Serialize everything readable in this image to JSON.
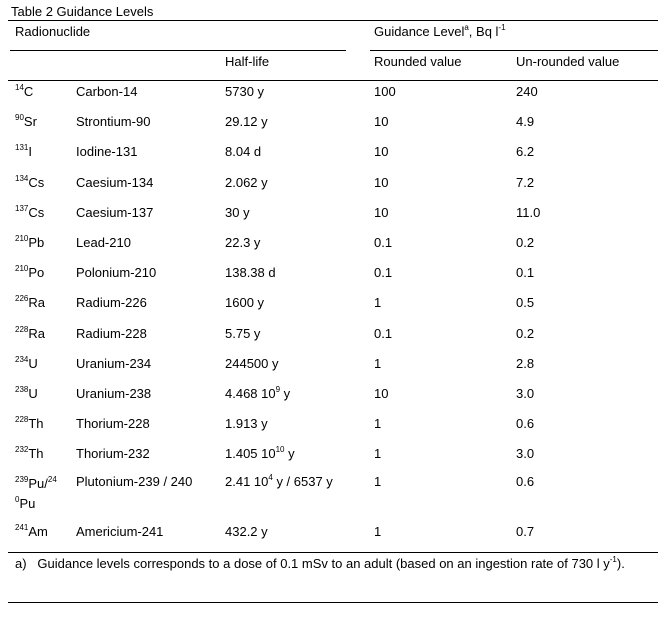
{
  "table": {
    "caption": "Table 2 Guidance Levels",
    "header": {
      "radionuclide": "Radionuclide",
      "guidance_level_label": "Guidance Level",
      "guidance_level_sup": "a",
      "guidance_level_unit": ", Bq l",
      "guidance_level_unit_sup": "-1",
      "half_life": "Half-life",
      "rounded": "Rounded value",
      "unrounded": "Un-rounded value"
    },
    "rows": [
      {
        "mass": "14",
        "sym": "C",
        "name": "Carbon-14",
        "half": "5730 y",
        "half_sup": "",
        "half_tail": "",
        "rounded": "100",
        "unrounded": "240"
      },
      {
        "mass": "90",
        "sym": "Sr",
        "name": "Strontium-90",
        "half": "29.12 y",
        "half_sup": "",
        "half_tail": "",
        "rounded": "10",
        "unrounded": "4.9"
      },
      {
        "mass": "131",
        "sym": "I",
        "name": "Iodine-131",
        "half": "8.04 d",
        "half_sup": "",
        "half_tail": "",
        "rounded": "10",
        "unrounded": "6.2"
      },
      {
        "mass": "134",
        "sym": "Cs",
        "name": "Caesium-134",
        "half": "2.062 y",
        "half_sup": "",
        "half_tail": "",
        "rounded": "10",
        "unrounded": "7.2"
      },
      {
        "mass": "137",
        "sym": "Cs",
        "name": "Caesium-137",
        "half": "30 y",
        "half_sup": "",
        "half_tail": "",
        "rounded": "10",
        "unrounded": "11.0"
      },
      {
        "mass": "210",
        "sym": "Pb",
        "name": "Lead-210",
        "half": "22.3 y",
        "half_sup": "",
        "half_tail": "",
        "rounded": "0.1",
        "unrounded": "0.2"
      },
      {
        "mass": "210",
        "sym": "Po",
        "name": "Polonium-210",
        "half": "138.38 d",
        "half_sup": "",
        "half_tail": "",
        "rounded": "0.1",
        "unrounded": "0.1"
      },
      {
        "mass": "226",
        "sym": "Ra",
        "name": "Radium-226",
        "half": "1600 y",
        "half_sup": "",
        "half_tail": "",
        "rounded": "1",
        "unrounded": "0.5"
      },
      {
        "mass": "228",
        "sym": "Ra",
        "name": "Radium-228",
        "half": "5.75 y",
        "half_sup": "",
        "half_tail": "",
        "rounded": "0.1",
        "unrounded": "0.2"
      },
      {
        "mass": "234",
        "sym": "U",
        "name": "Uranium-234",
        "half": "244500 y",
        "half_sup": "",
        "half_tail": "",
        "rounded": "1",
        "unrounded": "2.8"
      },
      {
        "mass": "238",
        "sym": "U",
        "name": "Uranium-238",
        "half": "4.468 10",
        "half_sup": "9",
        "half_tail": " y",
        "rounded": "10",
        "unrounded": "3.0"
      },
      {
        "mass": "228",
        "sym": "Th",
        "name": "Thorium-228",
        "half": "1.913 y",
        "half_sup": "",
        "half_tail": "",
        "rounded": "1",
        "unrounded": "0.6"
      },
      {
        "mass": "232",
        "sym": "Th",
        "name": "Thorium-232",
        "half": "1.405 10",
        "half_sup": "10",
        "half_tail": " y",
        "rounded": "1",
        "unrounded": "3.0"
      }
    ],
    "pu_row": {
      "mass1": "239",
      "sym1": "Pu/",
      "mass2a": "24",
      "mass2b": "0",
      "sym2": "Pu",
      "name": "Plutonium-239 / 240",
      "half": "2.41 10",
      "half_sup": "4",
      "half_tail": " y / 6537 y",
      "rounded": "1",
      "unrounded": "0.6"
    },
    "am_row": {
      "mass": "241",
      "sym": "Am",
      "name": "Americium-241",
      "half": "432.2 y",
      "rounded": "1",
      "unrounded": "0.7"
    },
    "footnote": {
      "marker": "a)",
      "text": "Guidance levels corresponds to a dose of 0.1 mSv to an adult (based on an ingestion rate of 730 l y",
      "sup": "-1",
      "end": ")."
    }
  }
}
